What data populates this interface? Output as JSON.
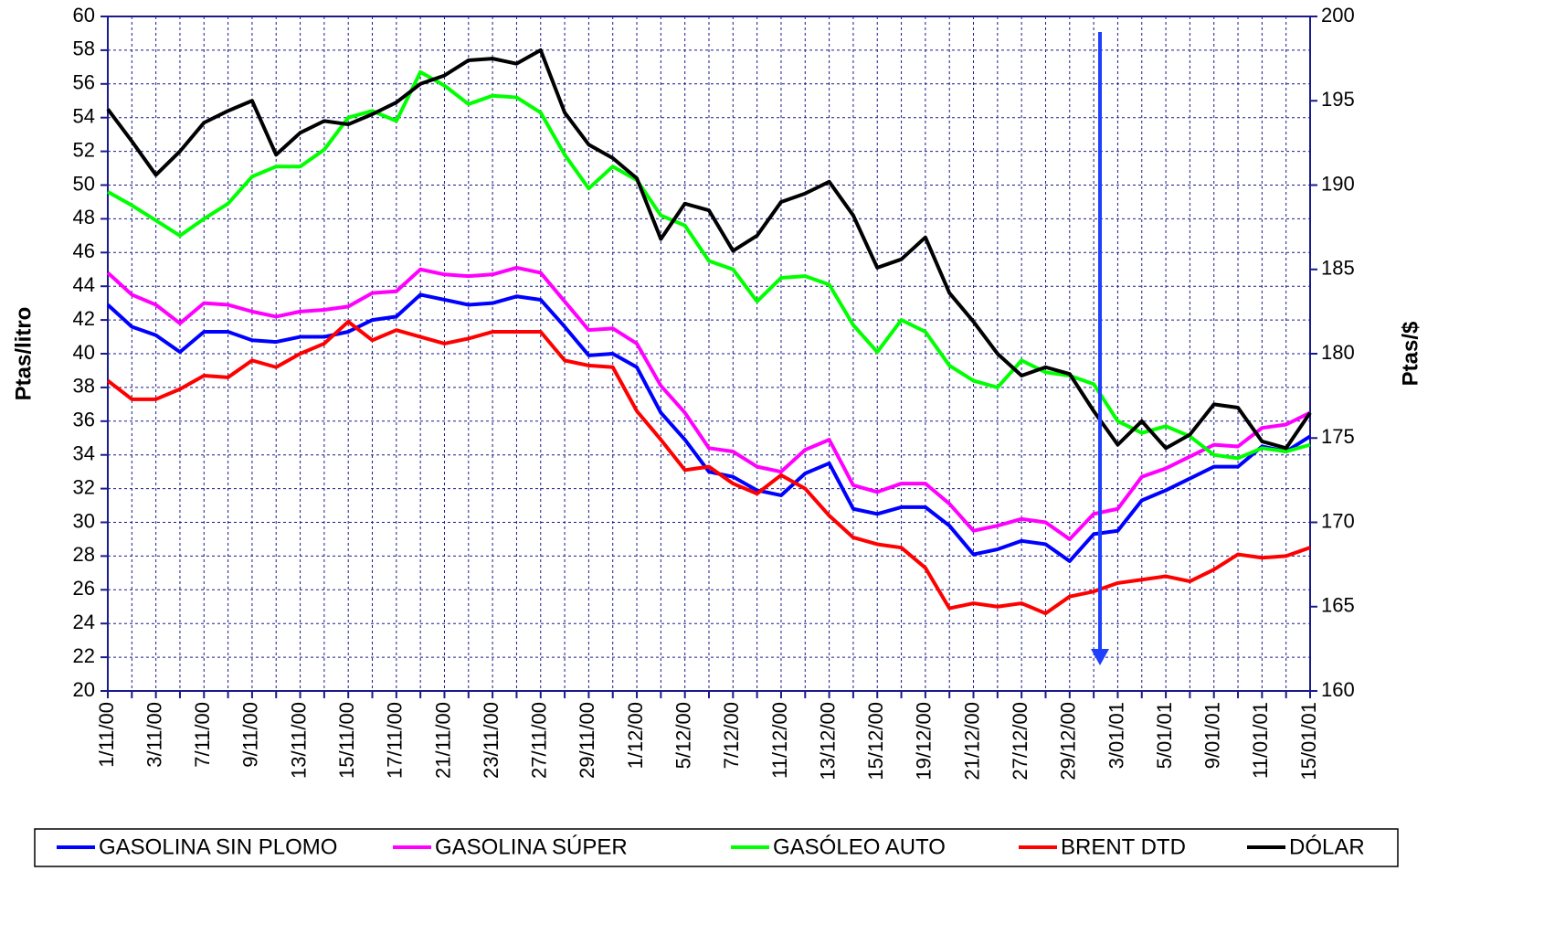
{
  "chart_data": {
    "type": "line",
    "y_label": "Ptas/litro",
    "y2_label": "Ptas/$",
    "categories": [
      "1/11/00",
      null,
      "3/11/00",
      null,
      "7/11/00",
      null,
      "9/11/00",
      null,
      "13/11/00",
      null,
      "15/11/00",
      null,
      "17/11/00",
      null,
      "21/11/00",
      null,
      "23/11/00",
      null,
      "27/11/00",
      null,
      "29/11/00",
      null,
      "1/12/00",
      null,
      "5/12/00",
      null,
      "7/12/00",
      null,
      "11/12/00",
      null,
      "13/12/00",
      null,
      "15/12/00",
      null,
      "19/12/00",
      null,
      "21/12/00",
      null,
      "27/12/00",
      null,
      "29/12/00",
      null,
      "3/01/01",
      null,
      "5/01/01",
      null,
      "9/01/01",
      null,
      "11/01/01",
      null,
      "15/01/01"
    ],
    "series": [
      {
        "name": "GASOLINA SIN PLOMO",
        "color": "#0000ff",
        "values": [
          42.9,
          41.6,
          41.1,
          40.1,
          41.3,
          41.3,
          40.8,
          40.7,
          41.0,
          41.0,
          41.3,
          42.0,
          42.2,
          43.5,
          43.2,
          42.9,
          43.0,
          43.4,
          43.2,
          41.6,
          39.9,
          40.0,
          39.2,
          36.5,
          34.9,
          33.0,
          32.7,
          31.9,
          31.6,
          32.9,
          33.5,
          30.8,
          30.5,
          30.9,
          30.9,
          29.8,
          28.1,
          28.4,
          28.9,
          28.7,
          27.7,
          29.3,
          29.5,
          31.3,
          31.9,
          32.6,
          33.3,
          33.3,
          34.5,
          34.2,
          35.1
        ]
      },
      {
        "name": "GASOLINA SÚPER",
        "color": "#ff00ff",
        "values": [
          44.8,
          43.5,
          42.9,
          41.8,
          43.0,
          42.9,
          42.5,
          42.2,
          42.5,
          42.6,
          42.8,
          43.6,
          43.7,
          45.0,
          44.7,
          44.6,
          44.7,
          45.1,
          44.8,
          43.1,
          41.4,
          41.5,
          40.6,
          38.1,
          36.5,
          34.4,
          34.2,
          33.3,
          33.0,
          34.3,
          34.9,
          32.2,
          31.8,
          32.3,
          32.3,
          31.1,
          29.5,
          29.8,
          30.2,
          30.0,
          29.0,
          30.5,
          30.8,
          32.7,
          33.2,
          33.9,
          34.6,
          34.5,
          35.6,
          35.8,
          36.5
        ]
      },
      {
        "name": "GASÓLEO AUTO",
        "color": "#00ff00",
        "values": [
          49.6,
          48.8,
          47.9,
          47.0,
          48.0,
          48.9,
          50.5,
          51.1,
          51.1,
          52.1,
          54.0,
          54.4,
          53.8,
          56.7,
          55.9,
          54.8,
          55.3,
          55.2,
          54.3,
          51.8,
          49.8,
          51.1,
          50.3,
          48.2,
          47.6,
          45.5,
          45.0,
          43.1,
          44.5,
          44.6,
          44.1,
          41.7,
          40.1,
          42.0,
          41.3,
          39.3,
          38.4,
          38.0,
          39.6,
          38.9,
          38.7,
          38.2,
          36.0,
          35.3,
          35.7,
          35.1,
          34.0,
          33.8,
          34.4,
          34.2,
          34.6
        ]
      },
      {
        "name": "BRENT DTD",
        "color": "#ff0000",
        "values": [
          38.4,
          37.3,
          37.3,
          37.9,
          38.7,
          38.6,
          39.6,
          39.2,
          40.0,
          40.6,
          41.9,
          40.8,
          41.4,
          41.0,
          40.6,
          40.9,
          41.3,
          41.3,
          41.3,
          39.6,
          39.3,
          39.2,
          36.6,
          34.9,
          33.1,
          33.3,
          32.3,
          31.7,
          32.8,
          32.0,
          30.4,
          29.1,
          28.7,
          28.5,
          27.3,
          24.9,
          25.2,
          25.0,
          25.2,
          24.6,
          25.6,
          25.9,
          26.4,
          26.6,
          26.8,
          26.5,
          27.2,
          28.1,
          27.9,
          28.0,
          28.5
        ]
      },
      {
        "name": "DÓLAR",
        "color": "#000000",
        "axis": "y2",
        "values": [
          194.5,
          192.6,
          190.6,
          192.0,
          193.7,
          194.4,
          195.0,
          191.8,
          193.1,
          193.8,
          193.6,
          194.2,
          194.9,
          196.0,
          196.5,
          197.4,
          197.5,
          197.2,
          198.0,
          194.3,
          192.4,
          191.6,
          190.4,
          186.8,
          188.9,
          188.5,
          186.1,
          187.0,
          189.0,
          189.5,
          190.2,
          188.2,
          185.1,
          185.6,
          186.9,
          183.6,
          181.9,
          180.0,
          178.7,
          179.2,
          178.8,
          176.6,
          174.6,
          176.0,
          174.4,
          175.2,
          177.0,
          176.8,
          174.8,
          174.4,
          176.5
        ]
      }
    ],
    "ylim": [
      20,
      60
    ],
    "yticks": [
      20,
      22,
      24,
      26,
      28,
      30,
      32,
      34,
      36,
      38,
      40,
      42,
      44,
      46,
      48,
      50,
      52,
      54,
      56,
      58,
      60
    ],
    "y2lim": [
      160,
      200
    ],
    "y2ticks": [
      160,
      165,
      170,
      175,
      180,
      185,
      190,
      195,
      200
    ],
    "grid": true,
    "legend": "bottom"
  }
}
